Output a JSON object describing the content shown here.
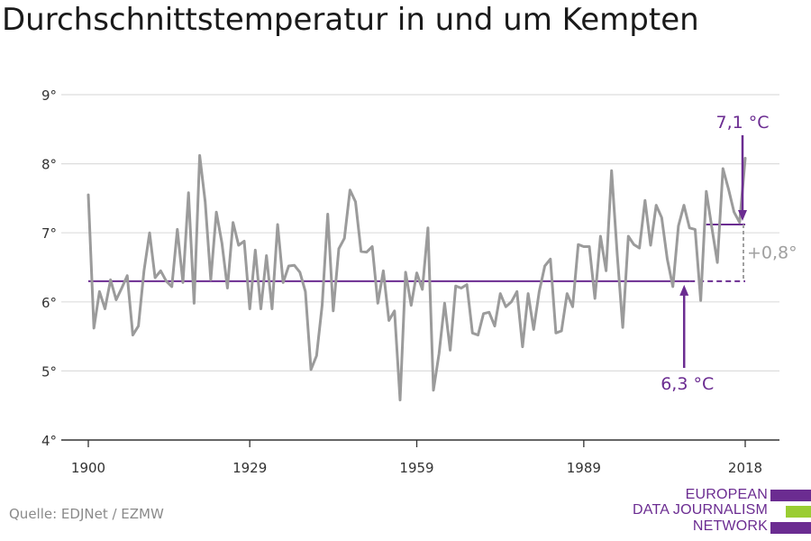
{
  "title": "Durchschnittstemperatur in und um Kempten",
  "source": "Quelle: EDJNet / EZMW",
  "logo": {
    "lines": [
      "EUROPEAN",
      "DATA JOURNALISM",
      "NETWORK"
    ],
    "colors": [
      "#6b2c91",
      "#9acd32",
      "#6b2c91"
    ]
  },
  "colors": {
    "line": "#9b9b9b",
    "accent": "#6b2c91",
    "diff": "#a0a0a0",
    "grid": "#dddddd",
    "axis": "#333333"
  },
  "chart_data": {
    "type": "line",
    "title": "Durchschnittstemperatur in und um Kempten",
    "xlabel": "",
    "ylabel": "",
    "x_ticks": [
      1900,
      1929,
      1959,
      1989,
      2018
    ],
    "y_ticks": [
      4,
      5,
      6,
      7,
      8,
      9
    ],
    "y_tick_labels": [
      "4°",
      "5°",
      "6°",
      "7°",
      "8°",
      "9°"
    ],
    "xlim": [
      1900,
      2018
    ],
    "ylim": [
      4,
      9
    ],
    "grid": true,
    "series": [
      {
        "x_start": 1900,
        "values": [
          7.55,
          5.62,
          6.15,
          5.9,
          6.32,
          6.03,
          6.2,
          6.38,
          5.52,
          5.65,
          6.45,
          7.0,
          6.35,
          6.45,
          6.3,
          6.22,
          7.05,
          6.28,
          7.58,
          5.98,
          8.12,
          7.45,
          6.32,
          7.3,
          6.85,
          6.2,
          7.15,
          6.82,
          6.88,
          5.9,
          6.75,
          5.9,
          6.67,
          5.9,
          7.12,
          6.28,
          6.52,
          6.53,
          6.43,
          6.15,
          5.02,
          5.22,
          5.95,
          7.27,
          5.87,
          6.77,
          6.92,
          7.62,
          7.45,
          6.73,
          6.72,
          6.8,
          5.98,
          6.45,
          5.73,
          5.87,
          4.58,
          6.43,
          5.95,
          6.42,
          6.18,
          7.07,
          4.72,
          5.25,
          5.98,
          5.3,
          6.23,
          6.2,
          6.25,
          5.55,
          5.52,
          5.83,
          5.85,
          5.65,
          6.12,
          5.93,
          6.0,
          6.15,
          5.35,
          6.12,
          5.6,
          6.15,
          6.52,
          6.62,
          5.55,
          5.58,
          6.12,
          5.93,
          6.83,
          6.8,
          6.8,
          6.05,
          6.95,
          6.45,
          7.9,
          6.7,
          5.63,
          6.95,
          6.83,
          6.78,
          7.47,
          6.82,
          7.4,
          7.22,
          6.62,
          6.22,
          7.1,
          7.4,
          7.07,
          7.05,
          6.02,
          7.6,
          7.08,
          6.57,
          7.93,
          7.63,
          7.3,
          7.15,
          8.08
        ]
      }
    ],
    "reference_lines": [
      {
        "label": "6,3 °C",
        "value": 6.3,
        "x_from": 1900,
        "x_to": 2008,
        "dashed_to": 2018
      },
      {
        "label": "7,1 °C",
        "value": 7.12,
        "x_from": 2011,
        "x_to": 2018
      }
    ],
    "difference_label": "+0,8°"
  }
}
